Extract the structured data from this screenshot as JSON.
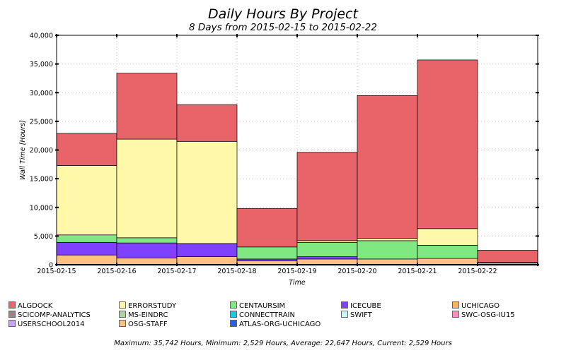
{
  "chart_data": {
    "type": "bar",
    "stacked": true,
    "title": "Daily Hours By Project",
    "subtitle": "8 Days from 2015-02-15 to 2015-02-22",
    "xlabel": "Time",
    "ylabel": "Wall Time [Hours]",
    "ylim": [
      0,
      40000
    ],
    "yticks": [
      0,
      5000,
      10000,
      15000,
      20000,
      25000,
      30000,
      35000,
      40000
    ],
    "ytick_labels": [
      "0",
      "5,000",
      "10,000",
      "15,000",
      "20,000",
      "25,000",
      "30,000",
      "35,000",
      "40,000"
    ],
    "categories": [
      "2015-02-15",
      "2015-02-16",
      "2015-02-17",
      "2015-02-18",
      "2015-02-19",
      "2015-02-20",
      "2015-02-21",
      "2015-02-22"
    ],
    "grid": true,
    "legend_position": "bottom",
    "series": [
      {
        "name": "OSG-STAFF",
        "color": "#ffc080",
        "values": [
          1700,
          1200,
          1400,
          700,
          1000,
          1000,
          1100,
          300
        ]
      },
      {
        "name": "ICECUBE",
        "color": "#8040ff",
        "values": [
          2200,
          2600,
          2300,
          300,
          400,
          0,
          0,
          0
        ]
      },
      {
        "name": "CENTAURSIM",
        "color": "#80e880",
        "values": [
          1300,
          900,
          0,
          2100,
          2500,
          3200,
          2300,
          100
        ]
      },
      {
        "name": "ERRORSTUDY",
        "color": "#fff8a8",
        "values": [
          12100,
          17200,
          17800,
          0,
          300,
          400,
          2900,
          0
        ]
      },
      {
        "name": "ALGDOCK",
        "color": "#e86468",
        "values": [
          5600,
          11500,
          6400,
          6700,
          15400,
          24900,
          29400,
          2129
        ]
      }
    ]
  },
  "legend": [
    {
      "name": "ALGDOCK",
      "color": "#e86468"
    },
    {
      "name": "ERRORSTUDY",
      "color": "#fff8a8"
    },
    {
      "name": "CENTAURSIM",
      "color": "#80e880"
    },
    {
      "name": "ICECUBE",
      "color": "#8040ff"
    },
    {
      "name": "UCHICAGO",
      "color": "#ffb060"
    },
    {
      "name": "SCICOMP-ANALYTICS",
      "color": "#a08080"
    },
    {
      "name": "MS-EINDRC",
      "color": "#b0d0a0"
    },
    {
      "name": "CONNECTTRAIN",
      "color": "#20c8d8"
    },
    {
      "name": "SWIFT",
      "color": "#c8f8f8"
    },
    {
      "name": "SWC-OSG-IU15",
      "color": "#ff90c0"
    },
    {
      "name": "USERSCHOOL2014",
      "color": "#c8a0ff"
    },
    {
      "name": "OSG-STAFF",
      "color": "#ffc080"
    },
    {
      "name": "ATLAS-ORG-UCHICAGO",
      "color": "#3060e0"
    }
  ],
  "footer": "Maximum: 35,742 Hours, Minimum: 2,529 Hours, Average: 22,647 Hours, Current: 2,529 Hours"
}
